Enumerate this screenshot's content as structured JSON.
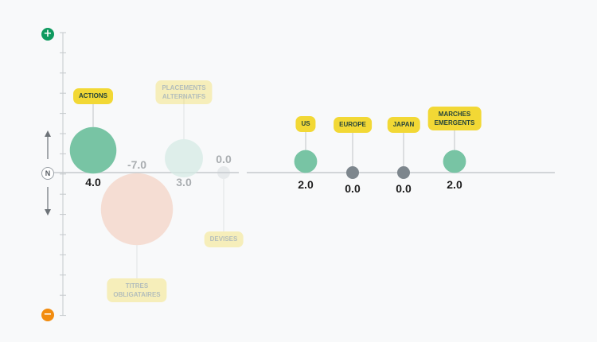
{
  "scale": {
    "top_symbol": "+",
    "bottom_symbol": "−",
    "neutral_label": "N",
    "top_color": "#0e9a5f",
    "bottom_color": "#f28c0f"
  },
  "colors": {
    "positive": "#78c4a4",
    "negative": "#f4d2c2",
    "neutral": "#7d868d",
    "label_bg": "#f2d835",
    "axis": "#c5c9cc"
  },
  "chart_data": {
    "type": "scatter",
    "title": "",
    "xlabel": "",
    "ylabel": "",
    "ylim": [
      -10,
      10
    ],
    "groups": [
      {
        "name": "asset_classes",
        "items": [
          {
            "label": "ACTIONS",
            "value": 4.0,
            "value_text": "4.0",
            "faded": false
          },
          {
            "label": "TITRES OBLIGATAIRES",
            "value": -7.0,
            "value_text": "-7.0",
            "faded": true
          },
          {
            "label": "PLACEMENTS ALTERNATIFS",
            "value": 3.0,
            "value_text": "3.0",
            "faded": true
          },
          {
            "label": "DEVISES",
            "value": 0.0,
            "value_text": "0.0",
            "faded": true
          }
        ]
      },
      {
        "name": "regions",
        "items": [
          {
            "label": "US",
            "value": 2.0,
            "value_text": "2.0",
            "faded": false
          },
          {
            "label": "EUROPE",
            "value": 0.0,
            "value_text": "0.0",
            "faded": false
          },
          {
            "label": "JAPAN",
            "value": 0.0,
            "value_text": "0.0",
            "faded": false
          },
          {
            "label": "MARCHES EMERGENTS",
            "value": 2.0,
            "value_text": "2.0",
            "faded": false
          }
        ]
      }
    ]
  }
}
